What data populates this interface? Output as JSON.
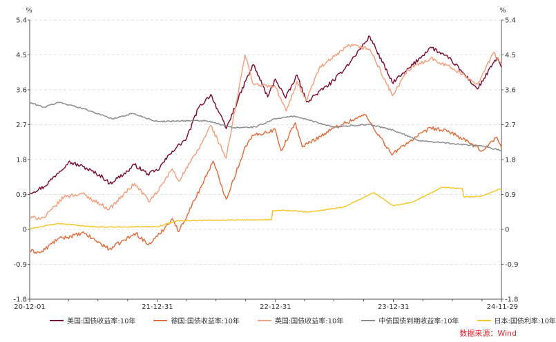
{
  "chart_data": {
    "type": "line",
    "y_unit_left": "%",
    "y_unit_right": "%",
    "ylim": [
      -1.8,
      5.4
    ],
    "y_ticks": [
      5.4,
      4.5,
      3.6,
      2.7,
      1.8,
      0.9,
      0,
      -0.9,
      -1.8
    ],
    "y_tick_labels": [
      "5.4",
      "4.5",
      "3.6",
      "2.7",
      "1.8",
      "0.9",
      "0",
      "-0.9",
      "-1.8"
    ],
    "x_range": [
      "2020-12-01",
      "2024-11-29"
    ],
    "x_ticks": [
      "2020-12-01",
      "2021-12-31",
      "2022-12-31",
      "2023-12-31",
      "2024-11-29"
    ],
    "x_tick_labels": [
      "20-12-01",
      "21-12-31",
      "22-12-31",
      "23-12-31",
      "24-11-29"
    ],
    "grid": true,
    "legend_position": "bottom",
    "series": [
      {
        "name": "美国:国债收益率:10年",
        "color": "#7b1236",
        "points": [
          [
            "2020-12-01",
            0.94
          ],
          [
            "2021-01-15",
            1.1
          ],
          [
            "2021-02-25",
            1.45
          ],
          [
            "2021-03-31",
            1.74
          ],
          [
            "2021-05-15",
            1.62
          ],
          [
            "2021-07-15",
            1.35
          ],
          [
            "2021-08-05",
            1.18
          ],
          [
            "2021-09-30",
            1.5
          ],
          [
            "2021-10-21",
            1.67
          ],
          [
            "2021-12-01",
            1.43
          ],
          [
            "2021-12-31",
            1.52
          ],
          [
            "2022-02-15",
            2.02
          ],
          [
            "2022-03-31",
            2.34
          ],
          [
            "2022-05-06",
            3.12
          ],
          [
            "2022-06-14",
            3.48
          ],
          [
            "2022-08-01",
            2.6
          ],
          [
            "2022-09-30",
            3.83
          ],
          [
            "2022-10-24",
            4.25
          ],
          [
            "2022-12-07",
            3.42
          ],
          [
            "2022-12-31",
            3.88
          ],
          [
            "2023-02-01",
            3.39
          ],
          [
            "2023-03-08",
            3.98
          ],
          [
            "2023-04-06",
            3.29
          ],
          [
            "2023-06-30",
            3.84
          ],
          [
            "2023-08-21",
            4.34
          ],
          [
            "2023-10-19",
            4.98
          ],
          [
            "2023-12-27",
            3.79
          ],
          [
            "2024-02-02",
            4.03
          ],
          [
            "2024-04-25",
            4.7
          ],
          [
            "2024-06-28",
            4.36
          ],
          [
            "2024-09-16",
            3.62
          ],
          [
            "2024-11-15",
            4.43
          ],
          [
            "2024-11-29",
            4.18
          ]
        ]
      },
      {
        "name": "德国:国债收益率:10年",
        "color": "#dd7144",
        "points": [
          [
            "2020-12-01",
            -0.55
          ],
          [
            "2021-01-04",
            -0.6
          ],
          [
            "2021-02-25",
            -0.25
          ],
          [
            "2021-05-19",
            -0.1
          ],
          [
            "2021-08-04",
            -0.51
          ],
          [
            "2021-10-26",
            -0.1
          ],
          [
            "2021-12-03",
            -0.4
          ],
          [
            "2021-12-31",
            -0.18
          ],
          [
            "2022-02-15",
            0.28
          ],
          [
            "2022-03-07",
            -0.06
          ],
          [
            "2022-05-15",
            1.1
          ],
          [
            "2022-06-21",
            1.76
          ],
          [
            "2022-08-01",
            0.78
          ],
          [
            "2022-09-30",
            2.15
          ],
          [
            "2022-10-24",
            2.42
          ],
          [
            "2022-12-31",
            2.57
          ],
          [
            "2023-01-18",
            2.03
          ],
          [
            "2023-03-03",
            2.75
          ],
          [
            "2023-03-24",
            2.13
          ],
          [
            "2023-07-06",
            2.64
          ],
          [
            "2023-10-04",
            2.96
          ],
          [
            "2023-12-27",
            1.92
          ],
          [
            "2024-01-31",
            2.17
          ],
          [
            "2024-04-25",
            2.62
          ],
          [
            "2024-06-28",
            2.5
          ],
          [
            "2024-09-30",
            2.03
          ],
          [
            "2024-11-15",
            2.38
          ],
          [
            "2024-11-29",
            2.09
          ]
        ]
      },
      {
        "name": "英国:国债收益率:10年",
        "color": "#f0a282",
        "points": [
          [
            "2020-12-01",
            0.3
          ],
          [
            "2021-01-15",
            0.3
          ],
          [
            "2021-03-18",
            0.85
          ],
          [
            "2021-05-12",
            0.92
          ],
          [
            "2021-08-04",
            0.52
          ],
          [
            "2021-10-21",
            1.18
          ],
          [
            "2021-12-08",
            0.72
          ],
          [
            "2021-12-31",
            0.97
          ],
          [
            "2022-02-15",
            1.56
          ],
          [
            "2022-03-07",
            1.25
          ],
          [
            "2022-05-06",
            2.05
          ],
          [
            "2022-06-14",
            2.68
          ],
          [
            "2022-08-01",
            1.84
          ],
          [
            "2022-09-28",
            4.5
          ],
          [
            "2022-10-24",
            3.75
          ],
          [
            "2022-12-31",
            3.67
          ],
          [
            "2023-02-03",
            3.05
          ],
          [
            "2023-03-08",
            3.82
          ],
          [
            "2023-04-05",
            3.32
          ],
          [
            "2023-05-15",
            4.15
          ],
          [
            "2023-08-17",
            4.75
          ],
          [
            "2023-10-19",
            4.65
          ],
          [
            "2023-12-28",
            3.45
          ],
          [
            "2024-02-15",
            4.12
          ],
          [
            "2024-04-25",
            4.42
          ],
          [
            "2024-06-28",
            4.17
          ],
          [
            "2024-09-16",
            3.75
          ],
          [
            "2024-11-05",
            4.56
          ],
          [
            "2024-11-29",
            4.24
          ]
        ]
      },
      {
        "name": "中债国债到期收益率:10年",
        "color": "#8c8c8c",
        "points": [
          [
            "2020-12-01",
            3.27
          ],
          [
            "2021-01-15",
            3.15
          ],
          [
            "2021-03-01",
            3.28
          ],
          [
            "2021-05-15",
            3.12
          ],
          [
            "2021-08-15",
            2.85
          ],
          [
            "2021-10-15",
            2.99
          ],
          [
            "2021-12-31",
            2.78
          ],
          [
            "2022-03-01",
            2.8
          ],
          [
            "2022-06-01",
            2.8
          ],
          [
            "2022-08-22",
            2.62
          ],
          [
            "2022-10-31",
            2.64
          ],
          [
            "2022-12-31",
            2.86
          ],
          [
            "2023-03-01",
            2.92
          ],
          [
            "2023-06-30",
            2.64
          ],
          [
            "2023-10-15",
            2.71
          ],
          [
            "2023-12-31",
            2.56
          ],
          [
            "2024-03-15",
            2.3
          ],
          [
            "2024-06-30",
            2.21
          ],
          [
            "2024-09-30",
            2.15
          ],
          [
            "2024-11-29",
            2.03
          ]
        ]
      },
      {
        "name": "日本:国债利率:10年",
        "color": "#f3c72b",
        "points": [
          [
            "2020-12-01",
            0.02
          ],
          [
            "2021-03-01",
            0.15
          ],
          [
            "2021-06-30",
            0.06
          ],
          [
            "2021-12-31",
            0.07
          ],
          [
            "2022-03-01",
            0.22
          ],
          [
            "2022-06-30",
            0.24
          ],
          [
            "2022-12-19",
            0.25
          ],
          [
            "2022-12-22",
            0.48
          ],
          [
            "2023-01-31",
            0.49
          ],
          [
            "2023-04-12",
            0.45
          ],
          [
            "2023-07-28",
            0.57
          ],
          [
            "2023-11-01",
            0.95
          ],
          [
            "2023-12-31",
            0.61
          ],
          [
            "2024-03-01",
            0.71
          ],
          [
            "2024-05-29",
            1.09
          ],
          [
            "2024-07-31",
            1.05
          ],
          [
            "2024-08-05",
            0.84
          ],
          [
            "2024-09-30",
            0.86
          ],
          [
            "2024-11-29",
            1.05
          ]
        ]
      }
    ]
  },
  "source": "数据来源：Wind"
}
